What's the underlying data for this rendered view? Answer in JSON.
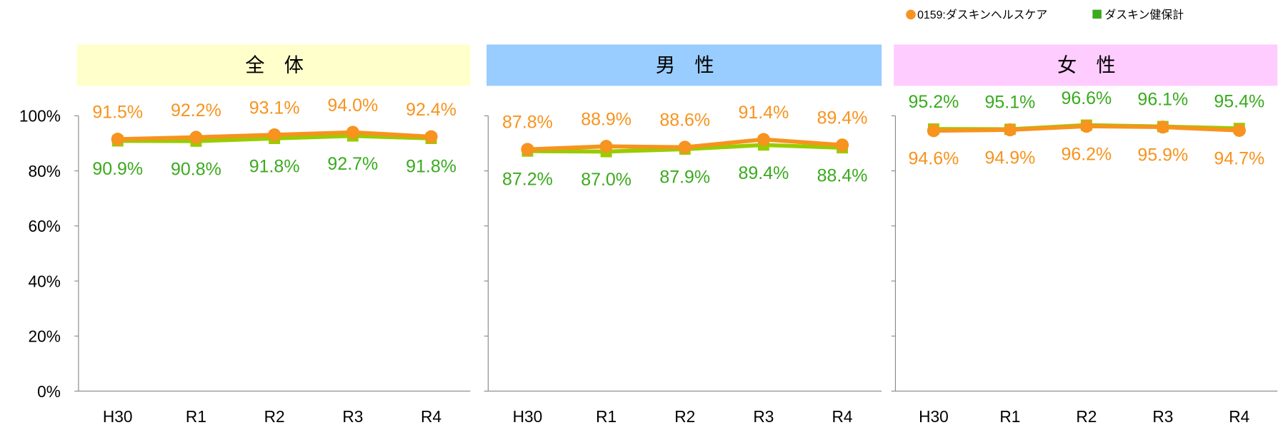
{
  "chart_data": [
    {
      "type": "line",
      "title": "全　体",
      "title_bg": "#ffffcc",
      "categories": [
        "H30",
        "R1",
        "R2",
        "R3",
        "R4"
      ],
      "series": [
        {
          "name": "0159:ダスキンヘルスケア",
          "color": "#f7931e",
          "marker": "circle",
          "values": [
            91.5,
            92.2,
            93.1,
            94.0,
            92.4
          ],
          "value_labels": [
            "91.5%",
            "92.2%",
            "93.1%",
            "94.0%",
            "92.4%"
          ]
        },
        {
          "name": "ダスキン健保計",
          "color": "#3aaa1e",
          "line_color": "#99cc00",
          "marker": "square",
          "values": [
            90.9,
            90.8,
            91.8,
            92.7,
            91.8
          ],
          "value_labels": [
            "90.9%",
            "90.8%",
            "91.8%",
            "92.7%",
            "91.8%"
          ]
        }
      ],
      "ylim": [
        0,
        100
      ],
      "yticks": [
        {
          "value": 0,
          "label": "0%"
        },
        {
          "value": 20,
          "label": "20%"
        },
        {
          "value": 40,
          "label": "40%"
        },
        {
          "value": 60,
          "label": "60%"
        },
        {
          "value": 80,
          "label": "80%"
        },
        {
          "value": 100,
          "label": "100%"
        }
      ]
    },
    {
      "type": "line",
      "title": "男　性",
      "title_bg": "#99ccff",
      "categories": [
        "H30",
        "R1",
        "R2",
        "R3",
        "R4"
      ],
      "series": [
        {
          "color": "#f7931e",
          "marker": "circle",
          "values": [
            87.8,
            88.9,
            88.6,
            91.4,
            89.4
          ],
          "value_labels": [
            "87.8%",
            "88.9%",
            "88.6%",
            "91.4%",
            "89.4%"
          ]
        },
        {
          "color": "#3aaa1e",
          "line_color": "#99cc00",
          "marker": "square",
          "values": [
            87.2,
            87.0,
            87.9,
            89.4,
            88.4
          ],
          "value_labels": [
            "87.2%",
            "87.0%",
            "87.9%",
            "89.4%",
            "88.4%"
          ]
        }
      ],
      "ylim": [
        0,
        100
      ],
      "yticks": [
        0,
        20,
        40,
        60,
        80,
        100
      ]
    },
    {
      "type": "line",
      "title": "女　性",
      "title_bg": "#ffccff",
      "categories": [
        "H30",
        "R1",
        "R2",
        "R3",
        "R4"
      ],
      "series": [
        {
          "color": "#f7931e",
          "marker": "circle",
          "values": [
            94.6,
            94.9,
            96.2,
            95.9,
            94.7
          ],
          "value_labels": [
            "94.6%",
            "94.9%",
            "96.2%",
            "95.9%",
            "94.7%"
          ]
        },
        {
          "color": "#3aaa1e",
          "line_color": "#99cc00",
          "marker": "square",
          "values": [
            95.2,
            95.1,
            96.6,
            96.1,
            95.4
          ],
          "value_labels": [
            "95.2%",
            "95.1%",
            "96.6%",
            "96.1%",
            "95.4%"
          ]
        }
      ],
      "ylim": [
        0,
        100
      ],
      "yticks": [
        0,
        20,
        40,
        60,
        80,
        100
      ]
    }
  ]
}
